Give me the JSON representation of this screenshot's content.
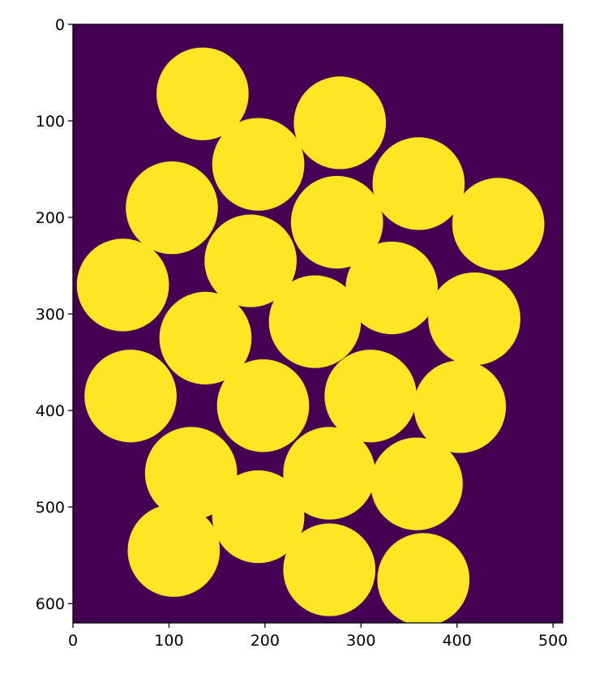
{
  "chart_data": {
    "type": "heatmap",
    "subtype": "binary image (imshow)",
    "colormap": "viridis",
    "colors": {
      "background": "#440154",
      "foreground": "#fde725"
    },
    "image_size": {
      "width": 510,
      "height": 620
    },
    "x_ticks": [
      0,
      100,
      200,
      300,
      400,
      500
    ],
    "y_ticks": [
      0,
      100,
      200,
      300,
      400,
      500,
      600
    ],
    "xlim": [
      0,
      510
    ],
    "ylim": [
      620,
      0
    ],
    "circle_radius": 48,
    "circles": [
      {
        "cx": 135,
        "cy": 72
      },
      {
        "cx": 278,
        "cy": 102
      },
      {
        "cx": 193,
        "cy": 145
      },
      {
        "cx": 360,
        "cy": 165
      },
      {
        "cx": 103,
        "cy": 190
      },
      {
        "cx": 275,
        "cy": 205
      },
      {
        "cx": 443,
        "cy": 207
      },
      {
        "cx": 185,
        "cy": 245
      },
      {
        "cx": 52,
        "cy": 270
      },
      {
        "cx": 332,
        "cy": 273
      },
      {
        "cx": 418,
        "cy": 305
      },
      {
        "cx": 252,
        "cy": 308
      },
      {
        "cx": 138,
        "cy": 325
      },
      {
        "cx": 60,
        "cy": 385
      },
      {
        "cx": 310,
        "cy": 385
      },
      {
        "cx": 198,
        "cy": 395
      },
      {
        "cx": 403,
        "cy": 396
      },
      {
        "cx": 123,
        "cy": 465
      },
      {
        "cx": 267,
        "cy": 465
      },
      {
        "cx": 358,
        "cy": 476
      },
      {
        "cx": 193,
        "cy": 510
      },
      {
        "cx": 105,
        "cy": 545
      },
      {
        "cx": 267,
        "cy": 565
      },
      {
        "cx": 365,
        "cy": 575
      }
    ],
    "grid": false,
    "legend": false
  }
}
